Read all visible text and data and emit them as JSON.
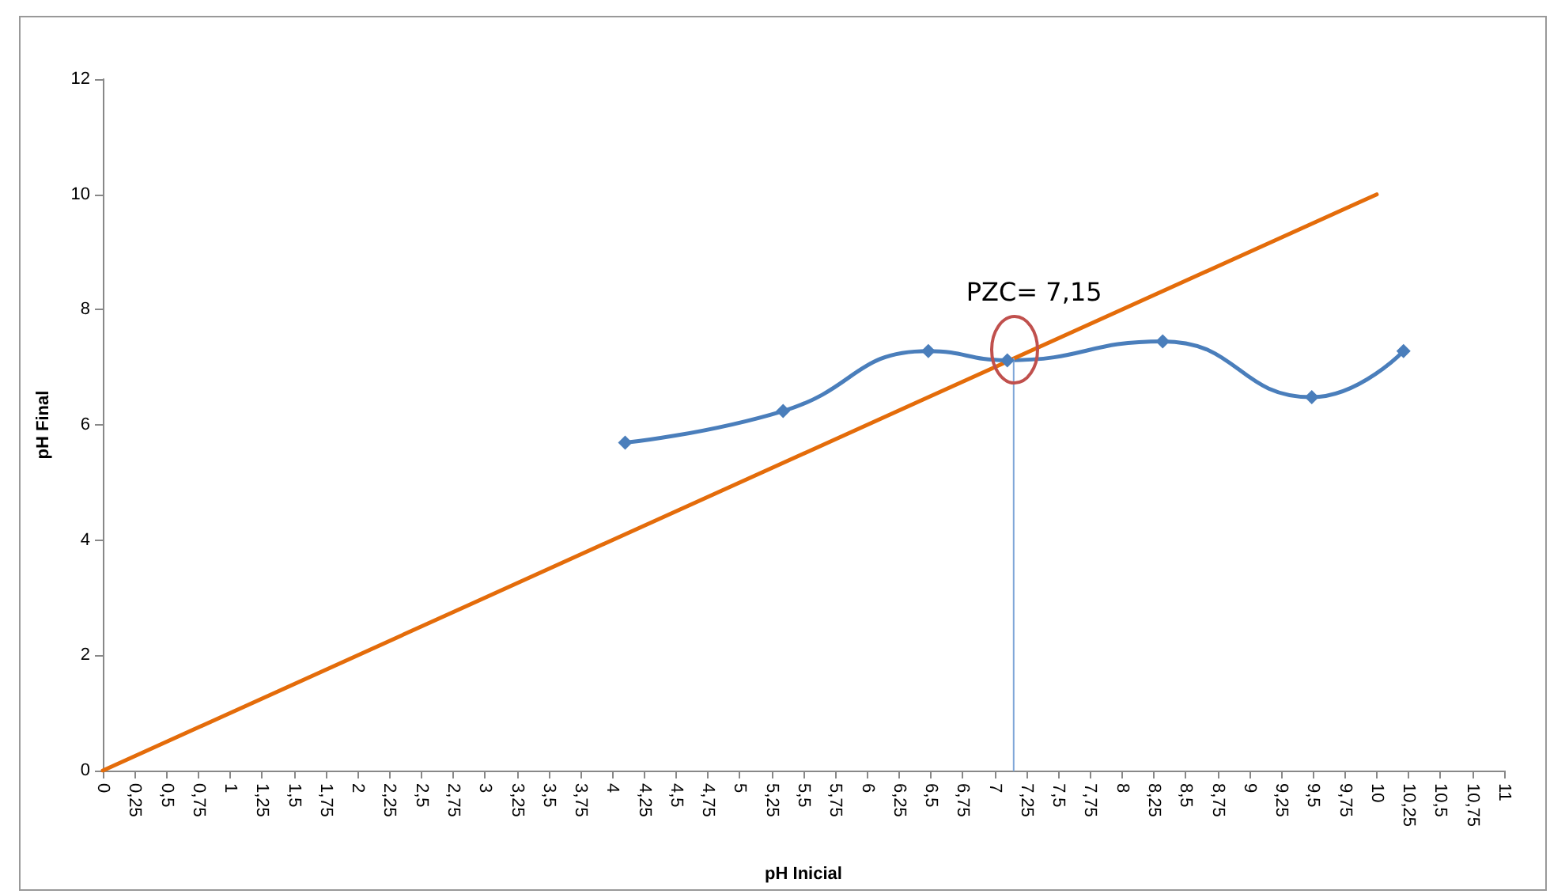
{
  "chart_data": {
    "type": "line",
    "xlabel": "pH Inicial",
    "ylabel": "pH Final",
    "annotations": [
      {
        "text": "PZC= 7,15",
        "x": 7.15,
        "y": 7.15
      }
    ],
    "series": [
      {
        "color": "#4a7ebb",
        "x": [
          4.1,
          5.34,
          6.48,
          7.1,
          8.32,
          9.49,
          10.21
        ],
        "values": [
          5.69,
          6.24,
          7.28,
          7.12,
          7.45,
          6.48,
          7.28
        ],
        "marker": "diamond"
      },
      {
        "color": "#e46c0a",
        "x": [
          0,
          10
        ],
        "values": [
          0,
          10
        ],
        "marker": "none"
      },
      {
        "color": "#7fa6d8",
        "x": [
          7.15,
          7.15
        ],
        "values": [
          0,
          7.15
        ],
        "marker": "none"
      }
    ],
    "xlim": [
      0,
      11
    ],
    "ylim": [
      0,
      12
    ],
    "yticks": [
      0,
      2,
      4,
      6,
      8,
      10,
      12
    ],
    "xticks": [
      0,
      {
        "value": 0.25,
        "label": "0,25"
      },
      {
        "value": 0.5,
        "label": "0,5"
      },
      {
        "value": 0.75,
        "label": "0,75"
      },
      1,
      {
        "value": 1.25,
        "label": "1,25"
      },
      {
        "value": 1.5,
        "label": "1,5"
      },
      {
        "value": 1.75,
        "label": "1,75"
      },
      2,
      {
        "value": 2.25,
        "label": "2,25"
      },
      {
        "value": 2.5,
        "label": "2,5"
      },
      {
        "value": 2.75,
        "label": "2,75"
      },
      3,
      {
        "value": 3.25,
        "label": "3,25"
      },
      {
        "value": 3.5,
        "label": "3,5"
      },
      {
        "value": 3.75,
        "label": "3,75"
      },
      4,
      {
        "value": 4.25,
        "label": "4,25"
      },
      {
        "value": 4.5,
        "label": "4,5"
      },
      {
        "value": 4.75,
        "label": "4,75"
      },
      5,
      {
        "value": 5.25,
        "label": "5,25"
      },
      {
        "value": 5.5,
        "label": "5,5"
      },
      {
        "value": 5.75,
        "label": "5,75"
      },
      6,
      {
        "value": 6.25,
        "label": "6,25"
      },
      {
        "value": 6.5,
        "label": "6,5"
      },
      {
        "value": 6.75,
        "label": "6,75"
      },
      7,
      {
        "value": 7.25,
        "label": "7,25"
      },
      {
        "value": 7.5,
        "label": "7,5"
      },
      {
        "value": 7.75,
        "label": "7,75"
      },
      8,
      {
        "value": 8.25,
        "label": "8,25"
      },
      {
        "value": 8.5,
        "label": "8,5"
      },
      {
        "value": 8.75,
        "label": "8,75"
      },
      9,
      {
        "value": 9.25,
        "label": "9,25"
      },
      {
        "value": 9.5,
        "label": "9,5"
      },
      {
        "value": 9.75,
        "label": "9,75"
      },
      10,
      {
        "value": 10.25,
        "label": "10,25"
      },
      {
        "value": 10.5,
        "label": "10,5"
      },
      {
        "value": 10.75,
        "label": "10,75"
      },
      11
    ],
    "grid": false
  }
}
